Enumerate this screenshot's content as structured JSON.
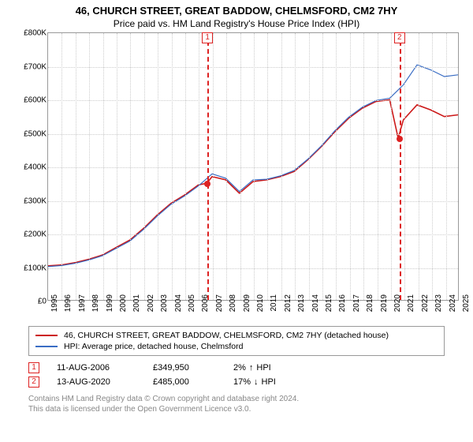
{
  "title": "46, CHURCH STREET, GREAT BADDOW, CHELMSFORD, CM2 7HY",
  "subtitle": "Price paid vs. HM Land Registry's House Price Index (HPI)",
  "chart": {
    "type": "line",
    "background_color": "#ffffff",
    "grid_color": "#cccccc",
    "border_color": "#999999",
    "x": {
      "min": 1995,
      "max": 2025,
      "step": 1
    },
    "y": {
      "min": 0,
      "max": 800000,
      "step": 100000,
      "format_prefix": "£",
      "format_suffix": "K",
      "format_div": 1000
    },
    "series": [
      {
        "name": "price_paid",
        "label": "46, CHURCH STREET, GREAT BADDOW, CHELMSFORD, CM2 7HY (detached house)",
        "color": "#cc1818",
        "line_width": 1.6,
        "points": [
          [
            1995,
            102000
          ],
          [
            1996,
            105000
          ],
          [
            1997,
            112000
          ],
          [
            1998,
            122000
          ],
          [
            1999,
            135000
          ],
          [
            2000,
            158000
          ],
          [
            2001,
            180000
          ],
          [
            2002,
            215000
          ],
          [
            2003,
            255000
          ],
          [
            2004,
            290000
          ],
          [
            2005,
            315000
          ],
          [
            2006,
            345000
          ],
          [
            2006.62,
            349950
          ],
          [
            2007,
            370000
          ],
          [
            2008,
            360000
          ],
          [
            2009,
            320000
          ],
          [
            2010,
            355000
          ],
          [
            2011,
            360000
          ],
          [
            2012,
            370000
          ],
          [
            2013,
            385000
          ],
          [
            2014,
            420000
          ],
          [
            2015,
            460000
          ],
          [
            2016,
            505000
          ],
          [
            2017,
            545000
          ],
          [
            2018,
            575000
          ],
          [
            2019,
            595000
          ],
          [
            2020,
            600000
          ],
          [
            2020.62,
            485000
          ],
          [
            2021,
            540000
          ],
          [
            2022,
            585000
          ],
          [
            2023,
            570000
          ],
          [
            2024,
            550000
          ],
          [
            2025,
            555000
          ]
        ]
      },
      {
        "name": "hpi",
        "label": "HPI: Average price, detached house, Chelmsford",
        "color": "#3a6dc4",
        "line_width": 1.2,
        "points": [
          [
            1995,
            100000
          ],
          [
            1996,
            103000
          ],
          [
            1997,
            110000
          ],
          [
            1998,
            120000
          ],
          [
            1999,
            133000
          ],
          [
            2000,
            155000
          ],
          [
            2001,
            177000
          ],
          [
            2002,
            212000
          ],
          [
            2003,
            252000
          ],
          [
            2004,
            287000
          ],
          [
            2005,
            312000
          ],
          [
            2006,
            342000
          ],
          [
            2007,
            378000
          ],
          [
            2008,
            365000
          ],
          [
            2009,
            325000
          ],
          [
            2010,
            360000
          ],
          [
            2011,
            362000
          ],
          [
            2012,
            372000
          ],
          [
            2013,
            388000
          ],
          [
            2014,
            422000
          ],
          [
            2015,
            462000
          ],
          [
            2016,
            508000
          ],
          [
            2017,
            548000
          ],
          [
            2018,
            578000
          ],
          [
            2019,
            598000
          ],
          [
            2020,
            605000
          ],
          [
            2021,
            645000
          ],
          [
            2022,
            705000
          ],
          [
            2023,
            690000
          ],
          [
            2024,
            670000
          ],
          [
            2025,
            675000
          ]
        ]
      }
    ],
    "event_markers": [
      {
        "num": "1",
        "x": 2006.62,
        "y": 349950
      },
      {
        "num": "2",
        "x": 2020.62,
        "y": 485000
      }
    ]
  },
  "events": [
    {
      "num": "1",
      "date": "11-AUG-2006",
      "price": "£349,950",
      "diff_pct": "2%",
      "diff_dir": "↑",
      "diff_label": "HPI"
    },
    {
      "num": "2",
      "date": "13-AUG-2020",
      "price": "£485,000",
      "diff_pct": "17%",
      "diff_dir": "↓",
      "diff_label": "HPI"
    }
  ],
  "footer": {
    "line1": "Contains HM Land Registry data © Crown copyright and database right 2024.",
    "line2": "This data is licensed under the Open Government Licence v3.0."
  }
}
